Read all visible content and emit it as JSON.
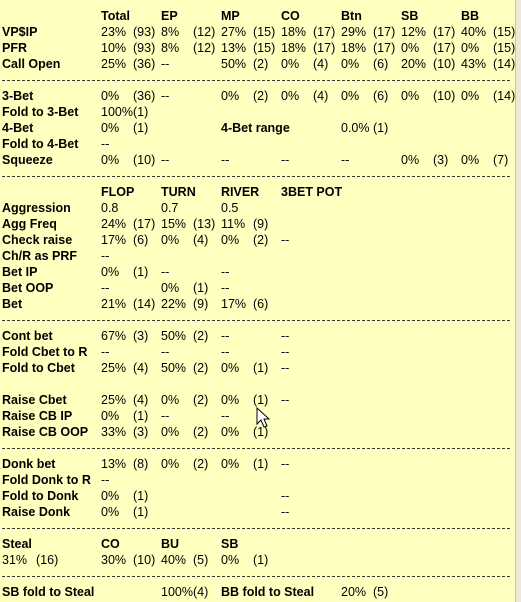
{
  "hud_popup": {
    "positions": {
      "header": [
        "Total",
        "EP",
        "MP",
        "CO",
        "Btn",
        "SB",
        "BB"
      ],
      "rows": [
        {
          "label": "VP$IP",
          "cells": [
            "23%",
            "(93)",
            "8%",
            "(12)",
            "27%",
            "(15)",
            "18%",
            "(17)",
            "29%",
            "(17)",
            "12%",
            "(17)",
            "40%",
            "(15)"
          ]
        },
        {
          "label": "PFR",
          "cells": [
            "10%",
            "(93)",
            "8%",
            "(12)",
            "13%",
            "(15)",
            "18%",
            "(17)",
            "18%",
            "(17)",
            "0%",
            "(17)",
            "0%",
            "(15)"
          ]
        },
        {
          "label": "Call Open",
          "cells": [
            "25%",
            "(36)",
            "--",
            "",
            "50%",
            "(2)",
            "0%",
            "(4)",
            "0%",
            "(6)",
            "20%",
            "(10)",
            "43%",
            "(14)"
          ]
        }
      ]
    },
    "threebet": {
      "rows": [
        {
          "label": "3-Bet",
          "cells": [
            "0%",
            "(36)",
            "--",
            "",
            "0%",
            "(2)",
            "0%",
            "(4)",
            "0%",
            "(6)",
            "0%",
            "(10)",
            "0%",
            "(14)"
          ]
        },
        {
          "label": "Fold to 3-Bet",
          "cells": [
            "100%(1)"
          ]
        },
        {
          "label": "4-Bet",
          "cells": [
            "0%",
            "(1)"
          ],
          "extra_label": "4-Bet range",
          "extra_value": "0.0%",
          "extra_count": "(1)"
        },
        {
          "label": "Fold to 4-Bet",
          "cells": [
            "--"
          ]
        },
        {
          "label": "Squeeze",
          "cells": [
            "0%",
            "(10)",
            "--",
            "",
            "--",
            "",
            "--",
            "",
            "--",
            "",
            "0%",
            "(3)",
            "0%",
            "(7)"
          ]
        }
      ]
    },
    "postflop": {
      "header": [
        "FLOP",
        "TURN",
        "RIVER",
        "3BET POT"
      ],
      "rows": [
        {
          "label": "Aggression",
          "cells": [
            "0.8",
            "",
            "0.7",
            "",
            "0.5",
            "",
            ""
          ]
        },
        {
          "label": "Agg Freq",
          "cells": [
            "24%",
            "(17)",
            "15%",
            "(13)",
            "11%",
            "(9)",
            ""
          ]
        },
        {
          "label": "Check raise",
          "cells": [
            "17%",
            "(6)",
            "0%",
            "(4)",
            "0%",
            "(2)",
            "--"
          ]
        },
        {
          "label": "Ch/R as PRF",
          "cells": [
            "--",
            "",
            "",
            "",
            "",
            "",
            ""
          ]
        },
        {
          "label": "Bet IP",
          "cells": [
            "0%",
            "(1)",
            "--",
            "",
            "--",
            "",
            ""
          ]
        },
        {
          "label": "Bet OOP",
          "cells": [
            "--",
            "",
            "0%",
            "(1)",
            "--",
            "",
            ""
          ]
        },
        {
          "label": "Bet",
          "cells": [
            "21%",
            "(14)",
            "22%",
            "(9)",
            "17%",
            "(6)",
            ""
          ]
        }
      ]
    },
    "cbet": {
      "rows": [
        {
          "label": "Cont bet",
          "cells": [
            "67%",
            "(3)",
            "50%",
            "(2)",
            "--",
            "",
            "--"
          ]
        },
        {
          "label": "Fold Cbet to R",
          "cells": [
            "--",
            "",
            "--",
            "",
            "--",
            "",
            "--"
          ]
        },
        {
          "label": "Fold to Cbet",
          "cells": [
            "25%",
            "(4)",
            "50%",
            "(2)",
            "0%",
            "(1)",
            "--"
          ]
        },
        {
          "label": "Raise Cbet",
          "cells": [
            "25%",
            "(4)",
            "0%",
            "(2)",
            "0%",
            "(1)",
            "--"
          ]
        },
        {
          "label": "Raise CB IP",
          "cells": [
            "0%",
            "(1)",
            "--",
            "",
            "--",
            "",
            ""
          ]
        },
        {
          "label": "Raise CB OOP",
          "cells": [
            "33%",
            "(3)",
            "0%",
            "(2)",
            "0%",
            "(1)",
            ""
          ]
        }
      ]
    },
    "donk": {
      "rows": [
        {
          "label": "Donk bet",
          "cells": [
            "13%",
            "(8)",
            "0%",
            "(2)",
            "0%",
            "(1)",
            "--"
          ]
        },
        {
          "label": "Fold Donk to R",
          "cells": [
            "--",
            "",
            "",
            "",
            "",
            "",
            ""
          ]
        },
        {
          "label": "Fold to Donk",
          "cells": [
            "0%",
            "(1)",
            "",
            "",
            "",
            "",
            "--"
          ]
        },
        {
          "label": "Raise Donk",
          "cells": [
            "0%",
            "(1)",
            "",
            "",
            "",
            "",
            "--"
          ]
        }
      ]
    },
    "steal": {
      "label": "Steal",
      "header": [
        "CO",
        "BU",
        "SB"
      ],
      "total": "31%",
      "total_count": "(16)",
      "cells": [
        "30%",
        "(10)",
        "40%",
        "(5)",
        "0%",
        "(1)"
      ]
    },
    "fold_to_steal": {
      "sb_label": "SB fold to Steal",
      "sb_value": "100%(4)",
      "bb_label": "BB fold to Steal",
      "bb_value": "20%",
      "bb_count": "(5)"
    }
  }
}
